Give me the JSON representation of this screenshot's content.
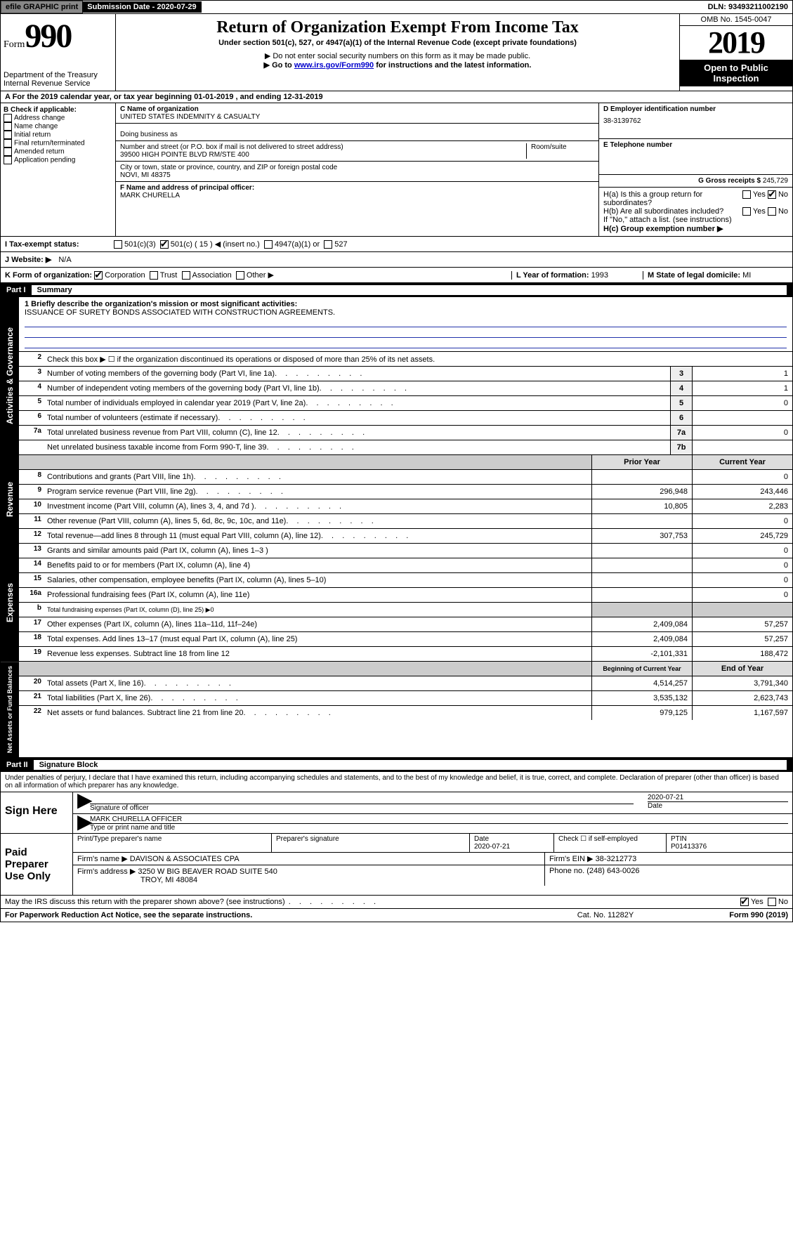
{
  "top": {
    "efile": "efile GRAPHIC print",
    "submission_label": "Submission Date - ",
    "submission_date": "2020-07-29",
    "dln_label": "DLN: ",
    "dln": "93493211002190"
  },
  "header": {
    "form_small": "Form",
    "form_big": "990",
    "dept": "Department of the Treasury",
    "irs": "Internal Revenue Service",
    "title": "Return of Organization Exempt From Income Tax",
    "subtitle": "Under section 501(c), 527, or 4947(a)(1) of the Internal Revenue Code (except private foundations)",
    "note1": "▶ Do not enter social security numbers on this form as it may be made public.",
    "note2_pre": "▶ Go to ",
    "note2_link": "www.irs.gov/Form990",
    "note2_post": " for instructions and the latest information.",
    "omb": "OMB No. 1545-0047",
    "year": "2019",
    "open": "Open to Public Inspection"
  },
  "A": {
    "text": "A For the 2019 calendar year, or tax year beginning 01-01-2019   , and ending 12-31-2019"
  },
  "B": {
    "label": "B Check if applicable:",
    "opts": [
      "Address change",
      "Name change",
      "Initial return",
      "Final return/terminated",
      "Amended return",
      "Application pending"
    ]
  },
  "C": {
    "name_label": "C Name of organization",
    "name": "UNITED STATES INDEMNITY & CASUALTY",
    "dba_label": "Doing business as",
    "addr_label": "Number and street (or P.O. box if mail is not delivered to street address)",
    "room_label": "Room/suite",
    "addr": "39500 HIGH POINTE BLVD RM/STE 400",
    "city_label": "City or town, state or province, country, and ZIP or foreign postal code",
    "city": "NOVI, MI  48375",
    "officer_label": "F  Name and address of principal officer:",
    "officer": "MARK CHURELLA"
  },
  "D": {
    "label": "D Employer identification number",
    "val": "38-3139762"
  },
  "E": {
    "label": "E Telephone number",
    "val": ""
  },
  "G": {
    "label": "G Gross receipts $ ",
    "val": "245,729"
  },
  "H": {
    "a": "H(a)  Is this a group return for subordinates?",
    "b": "H(b)  Are all subordinates included?",
    "b_note": "If \"No,\" attach a list. (see instructions)",
    "c": "H(c)  Group exemption number ▶",
    "yes": "Yes",
    "no": "No"
  },
  "I": {
    "label": "I  Tax-exempt status:",
    "o1": "501(c)(3)",
    "o2": "501(c) ( 15 ) ◀ (insert no.)",
    "o3": "4947(a)(1) or",
    "o4": "527"
  },
  "J": {
    "label": "J   Website: ▶",
    "val": "N/A"
  },
  "K": {
    "label": "K Form of organization:",
    "opts": [
      "Corporation",
      "Trust",
      "Association",
      "Other ▶"
    ],
    "L": "L Year of formation: ",
    "L_val": "1993",
    "M": "M State of legal domicile: ",
    "M_val": "MI"
  },
  "partI": {
    "num": "Part I",
    "title": "Summary"
  },
  "summary": {
    "l1_label": "1  Briefly describe the organization's mission or most significant activities:",
    "l1_val": "ISSUANCE OF SURETY BONDS ASSOCIATED WITH CONSTRUCTION AGREEMENTS.",
    "l2": "Check this box ▶ ☐  if the organization discontinued its operations or disposed of more than 25% of its net assets.",
    "lines_ag": [
      {
        "n": "3",
        "d": "Number of voting members of the governing body (Part VI, line 1a)",
        "box": "3",
        "v": "1"
      },
      {
        "n": "4",
        "d": "Number of independent voting members of the governing body (Part VI, line 1b)",
        "box": "4",
        "v": "1"
      },
      {
        "n": "5",
        "d": "Total number of individuals employed in calendar year 2019 (Part V, line 2a)",
        "box": "5",
        "v": "0"
      },
      {
        "n": "6",
        "d": "Total number of volunteers (estimate if necessary)",
        "box": "6",
        "v": ""
      },
      {
        "n": "7a",
        "d": "Total unrelated business revenue from Part VIII, column (C), line 12",
        "box": "7a",
        "v": "0"
      },
      {
        "n": "",
        "d": "Net unrelated business taxable income from Form 990-T, line 39",
        "box": "7b",
        "v": ""
      }
    ],
    "col_hdr_prior": "Prior Year",
    "col_hdr_curr": "Current Year",
    "revenue": [
      {
        "n": "8",
        "d": "Contributions and grants (Part VIII, line 1h)",
        "p": "",
        "c": "0"
      },
      {
        "n": "9",
        "d": "Program service revenue (Part VIII, line 2g)",
        "p": "296,948",
        "c": "243,446"
      },
      {
        "n": "10",
        "d": "Investment income (Part VIII, column (A), lines 3, 4, and 7d )",
        "p": "10,805",
        "c": "2,283"
      },
      {
        "n": "11",
        "d": "Other revenue (Part VIII, column (A), lines 5, 6d, 8c, 9c, 10c, and 11e)",
        "p": "",
        "c": "0"
      },
      {
        "n": "12",
        "d": "Total revenue—add lines 8 through 11 (must equal Part VIII, column (A), line 12)",
        "p": "307,753",
        "c": "245,729"
      }
    ],
    "expenses": [
      {
        "n": "13",
        "d": "Grants and similar amounts paid (Part IX, column (A), lines 1–3 )",
        "p": "",
        "c": "0"
      },
      {
        "n": "14",
        "d": "Benefits paid to or for members (Part IX, column (A), line 4)",
        "p": "",
        "c": "0"
      },
      {
        "n": "15",
        "d": "Salaries, other compensation, employee benefits (Part IX, column (A), lines 5–10)",
        "p": "",
        "c": "0"
      },
      {
        "n": "16a",
        "d": "Professional fundraising fees (Part IX, column (A), line 11e)",
        "p": "",
        "c": "0"
      },
      {
        "n": "b",
        "d": "Total fundraising expenses (Part IX, column (D), line 25) ▶0",
        "p": "shade",
        "c": "shade"
      },
      {
        "n": "17",
        "d": "Other expenses (Part IX, column (A), lines 11a–11d, 11f–24e)",
        "p": "2,409,084",
        "c": "57,257"
      },
      {
        "n": "18",
        "d": "Total expenses. Add lines 13–17 (must equal Part IX, column (A), line 25)",
        "p": "2,409,084",
        "c": "57,257"
      },
      {
        "n": "19",
        "d": "Revenue less expenses. Subtract line 18 from line 12",
        "p": "-2,101,331",
        "c": "188,472"
      }
    ],
    "na_hdr_beg": "Beginning of Current Year",
    "na_hdr_end": "End of Year",
    "netassets": [
      {
        "n": "20",
        "d": "Total assets (Part X, line 16)",
        "p": "4,514,257",
        "c": "3,791,340"
      },
      {
        "n": "21",
        "d": "Total liabilities (Part X, line 26)",
        "p": "3,535,132",
        "c": "2,623,743"
      },
      {
        "n": "22",
        "d": "Net assets or fund balances. Subtract line 21 from line 20",
        "p": "979,125",
        "c": "1,167,597"
      }
    ],
    "vlabels": {
      "ag": "Activities & Governance",
      "rev": "Revenue",
      "exp": "Expenses",
      "na": "Net Assets or Fund Balances"
    }
  },
  "partII": {
    "num": "Part II",
    "title": "Signature Block",
    "perjury": "Under penalties of perjury, I declare that I have examined this return, including accompanying schedules and statements, and to the best of my knowledge and belief, it is true, correct, and complete. Declaration of preparer (other than officer) is based on all information of which preparer has any knowledge."
  },
  "sign": {
    "here": "Sign Here",
    "sig_label": "Signature of officer",
    "date_label": "Date",
    "date": "2020-07-21",
    "name": "MARK CHURELLA  OFFICER",
    "name_label": "Type or print name and title"
  },
  "paid": {
    "label": "Paid Preparer Use Only",
    "h1": "Print/Type preparer's name",
    "h2": "Preparer's signature",
    "h3": "Date",
    "h4": "Check ☐ if self-employed",
    "h5": "PTIN",
    "date": "2020-07-21",
    "ptin": "P01413376",
    "firm_label": "Firm's name   ▶",
    "firm": "DAVISON & ASSOCIATES CPA",
    "ein_label": "Firm's EIN ▶",
    "ein": "38-3212773",
    "addr_label": "Firm's address ▶",
    "addr": "3250 W BIG BEAVER ROAD SUITE 540",
    "addr2": "TROY, MI  48084",
    "phone_label": "Phone no. ",
    "phone": "(248) 643-0026"
  },
  "discuss": {
    "q": "May the IRS discuss this return with the preparer shown above? (see instructions)",
    "yes": "Yes",
    "no": "No"
  },
  "footer": {
    "pra": "For Paperwork Reduction Act Notice, see the separate instructions.",
    "cat": "Cat. No. 11282Y",
    "form": "Form 990 (2019)"
  }
}
